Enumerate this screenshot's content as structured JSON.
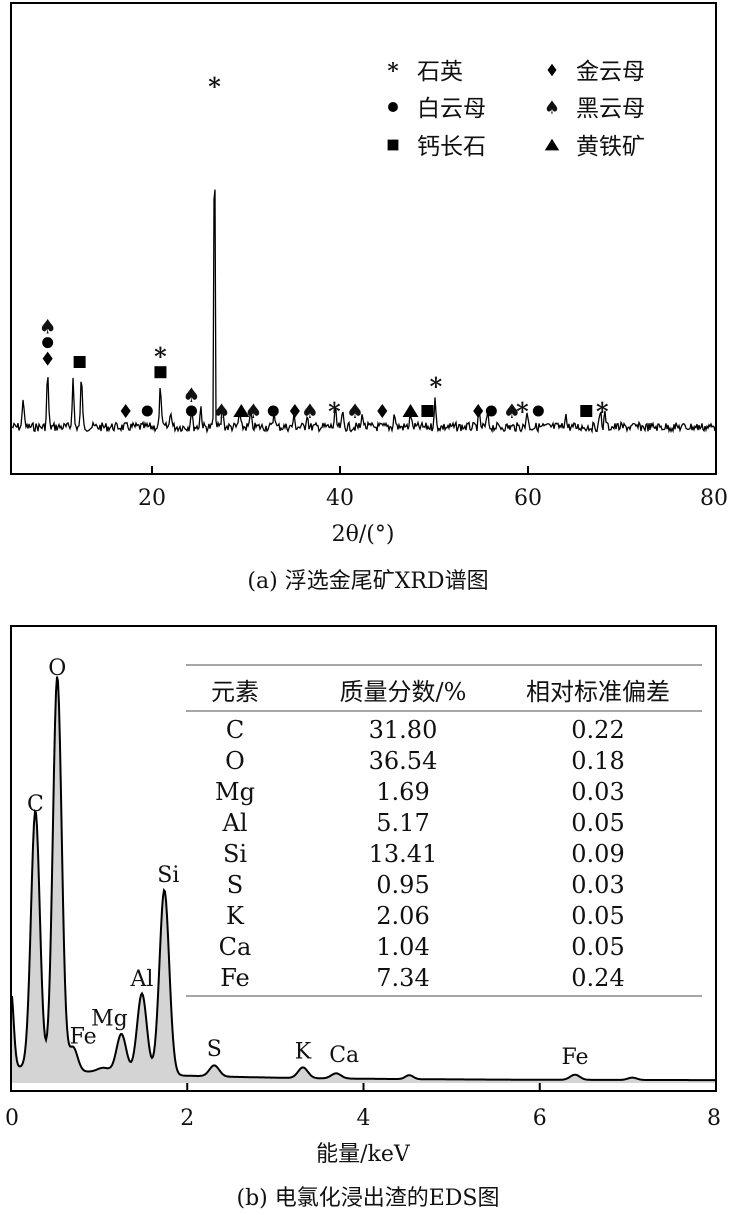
{
  "chart_data": [
    {
      "type": "line",
      "xlabel": "2θ/(°)",
      "xlim": [
        5,
        80
      ],
      "xticks": [
        20,
        40,
        60,
        80
      ],
      "caption": "(a) 浮选金尾矿XRD谱图",
      "grid": false,
      "legend_placement": "top-right",
      "legend": [
        {
          "symbol": "asterisk",
          "label": "石英"
        },
        {
          "symbol": "diamond",
          "label": "金云母"
        },
        {
          "symbol": "circle",
          "label": "白云母"
        },
        {
          "symbol": "spade",
          "label": "黑云母"
        },
        {
          "symbol": "square",
          "label": "钙长石"
        },
        {
          "symbol": "triangle",
          "label": "黄铁矿"
        }
      ],
      "peaks": [
        {
          "x": 6.3,
          "h": 0.09
        },
        {
          "x": 8.9,
          "h": 0.16
        },
        {
          "x": 11.6,
          "h": 0.14
        },
        {
          "x": 12.5,
          "h": 0.15
        },
        {
          "x": 20.9,
          "h": 0.12
        },
        {
          "x": 22.0,
          "h": 0.05
        },
        {
          "x": 24.2,
          "h": 0.05
        },
        {
          "x": 25.2,
          "h": 0.06
        },
        {
          "x": 26.65,
          "h": 1.0
        },
        {
          "x": 27.5,
          "h": 0.06
        },
        {
          "x": 29.3,
          "h": 0.04
        },
        {
          "x": 30.5,
          "h": 0.04
        },
        {
          "x": 33.0,
          "h": 0.05
        },
        {
          "x": 35.1,
          "h": 0.03
        },
        {
          "x": 36.5,
          "h": 0.04
        },
        {
          "x": 39.5,
          "h": 0.05
        },
        {
          "x": 40.3,
          "h": 0.04
        },
        {
          "x": 42.4,
          "h": 0.04
        },
        {
          "x": 45.8,
          "h": 0.04
        },
        {
          "x": 47.5,
          "h": 0.04
        },
        {
          "x": 50.1,
          "h": 0.08
        },
        {
          "x": 54.8,
          "h": 0.04
        },
        {
          "x": 55.7,
          "h": 0.04
        },
        {
          "x": 59.9,
          "h": 0.05
        },
        {
          "x": 64.0,
          "h": 0.04
        },
        {
          "x": 67.7,
          "h": 0.05
        },
        {
          "x": 68.2,
          "h": 0.04
        }
      ],
      "markers": [
        {
          "x": 8.9,
          "symbols": [
            "diamond",
            "circle",
            "spade"
          ]
        },
        {
          "x": 12.3,
          "symbols": [
            "square"
          ]
        },
        {
          "x": 17.2,
          "symbols": [
            "diamond"
          ]
        },
        {
          "x": 19.5,
          "symbols": [
            "circle"
          ]
        },
        {
          "x": 20.9,
          "symbols": [
            "square",
            "asterisk"
          ]
        },
        {
          "x": 24.2,
          "symbols": [
            "circle",
            "spade"
          ]
        },
        {
          "x": 26.65,
          "symbols": [
            "asterisk"
          ]
        },
        {
          "x": 27.4,
          "symbols": [
            "spade"
          ]
        },
        {
          "x": 29.5,
          "symbols": [
            "triangle"
          ]
        },
        {
          "x": 30.8,
          "symbols": [
            "spade"
          ]
        },
        {
          "x": 32.9,
          "symbols": [
            "circle"
          ]
        },
        {
          "x": 35.2,
          "symbols": [
            "diamond"
          ]
        },
        {
          "x": 36.8,
          "symbols": [
            "spade"
          ]
        },
        {
          "x": 39.4,
          "symbols": [
            "asterisk"
          ]
        },
        {
          "x": 41.6,
          "symbols": [
            "spade"
          ]
        },
        {
          "x": 44.5,
          "symbols": [
            "diamond"
          ]
        },
        {
          "x": 47.5,
          "symbols": [
            "triangle"
          ]
        },
        {
          "x": 49.3,
          "symbols": [
            "square"
          ]
        },
        {
          "x": 50.2,
          "symbols": [
            "asterisk"
          ]
        },
        {
          "x": 54.7,
          "symbols": [
            "diamond"
          ]
        },
        {
          "x": 56.1,
          "symbols": [
            "circle"
          ]
        },
        {
          "x": 58.3,
          "symbols": [
            "spade"
          ]
        },
        {
          "x": 59.4,
          "symbols": [
            "asterisk"
          ]
        },
        {
          "x": 61.1,
          "symbols": [
            "circle"
          ]
        },
        {
          "x": 66.2,
          "symbols": [
            "square"
          ]
        },
        {
          "x": 67.9,
          "symbols": [
            "asterisk"
          ]
        }
      ]
    },
    {
      "type": "area",
      "xlabel": "能量/keV",
      "xlim": [
        0,
        8
      ],
      "xticks": [
        0,
        2,
        4,
        6,
        8
      ],
      "caption": "(b) 电氯化浸出渣的EDS图",
      "grid": false,
      "peaks": [
        {
          "label": "C",
          "x": 0.277,
          "h": 0.655
        },
        {
          "label": "O",
          "x": 0.525,
          "h": 1.0
        },
        {
          "label": "Fe",
          "x": 0.705,
          "h": 0.06
        },
        {
          "label": "Mg",
          "x": 1.253,
          "h": 0.1
        },
        {
          "label": "Al",
          "x": 1.486,
          "h": 0.205
        },
        {
          "label": "Si",
          "x": 1.74,
          "h": 0.47
        },
        {
          "label": "S",
          "x": 2.307,
          "h": 0.028
        },
        {
          "label": "K",
          "x": 3.313,
          "h": 0.027
        },
        {
          "label": "Ca",
          "x": 3.69,
          "h": 0.013
        },
        {
          "label": "Fe",
          "x": 6.4,
          "h": 0.013
        }
      ],
      "table": {
        "headers": [
          "元素",
          "质量分数/%",
          "相对标准偏差"
        ],
        "rows": [
          [
            "C",
            "31.80",
            "0.22"
          ],
          [
            "O",
            "36.54",
            "0.18"
          ],
          [
            "Mg",
            "1.69",
            "0.03"
          ],
          [
            "Al",
            "5.17",
            "0.05"
          ],
          [
            "Si",
            "13.41",
            "0.09"
          ],
          [
            "S",
            "0.95",
            "0.03"
          ],
          [
            "K",
            "2.06",
            "0.05"
          ],
          [
            "Ca",
            "1.04",
            "0.05"
          ],
          [
            "Fe",
            "7.34",
            "0.24"
          ]
        ]
      }
    }
  ]
}
